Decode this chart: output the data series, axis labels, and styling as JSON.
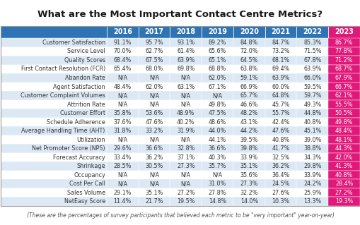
{
  "title": "What are the Most Important Contact Centre Metrics?",
  "subtitle": "(These are the percentages of survey participants that believed each metric to be \"very important\" year-on-year)",
  "columns": [
    "2016",
    "2017",
    "2018",
    "2019",
    "2020",
    "2021",
    "2022",
    "2023"
  ],
  "rows": [
    [
      "Customer Satisfaction",
      "91.1%",
      "95.7%",
      "93.1%",
      "89.2%",
      "84.8%",
      "84.7%",
      "85.3%",
      "86.7%"
    ],
    [
      "Service Level",
      "70.0%",
      "62.7%",
      "61.4%",
      "65.6%",
      "72.0%",
      "73.2%",
      "71.5%",
      "77.8%"
    ],
    [
      "Quality Scores",
      "68.4%",
      "67.5%",
      "63.9%",
      "65.1%",
      "64.5%",
      "68.1%",
      "67.8%",
      "71.2%"
    ],
    [
      "First Contact Resolution (FCR)",
      "65.4%",
      "68.0%",
      "69.8%",
      "68.8%",
      "63.8%",
      "69.4%",
      "63.9%",
      "68.7%"
    ],
    [
      "Abandon Rate",
      "N/A",
      "N/A",
      "N/A",
      "62.0%",
      "59.1%",
      "63.9%",
      "66.0%",
      "67.9%"
    ],
    [
      "Agent Satisfaction",
      "48.4%",
      "62.0%",
      "63.1%",
      "67.1%",
      "66.9%",
      "60.0%",
      "59.5%",
      "66.7%"
    ],
    [
      "Customer Complaint Volumes",
      "N/A",
      "N/A",
      "N/A",
      "N/A",
      "65.7%",
      "64.8%",
      "59.7%",
      "62.1%"
    ],
    [
      "Attrition Rate",
      "N/A",
      "N/A",
      "N/A",
      "49.8%",
      "46.6%",
      "45.7%",
      "49.3%",
      "55.5%"
    ],
    [
      "Customer Effort",
      "35.8%",
      "53.6%",
      "48.9%",
      "47.5%",
      "48.2%",
      "55.7%",
      "44.8%",
      "50.5%"
    ],
    [
      "Schedule Adherence",
      "37.6%",
      "47.6%",
      "40.2%",
      "48.6%",
      "43.1%",
      "42.4%",
      "40.8%",
      "49.8%"
    ],
    [
      "Average Handling Time (AHT)",
      "31.8%",
      "33.2%",
      "31.9%",
      "44.0%",
      "44.2%",
      "47.6%",
      "45.1%",
      "48.4%"
    ],
    [
      "Utilization",
      "N/A",
      "N/A",
      "N/A",
      "44.1%",
      "39.5%",
      "40.8%",
      "39.0%",
      "48.1%"
    ],
    [
      "Net Promoter Score (NPS)",
      "29.6%",
      "36.6%",
      "32.8%",
      "36.6%",
      "39.8%",
      "41.7%",
      "38.8%",
      "44.3%"
    ],
    [
      "Forecast Accuracy",
      "33.4%",
      "36.2%",
      "37.1%",
      "40.3%",
      "33.9%",
      "32.5%",
      "34.3%",
      "42.0%"
    ],
    [
      "Shrinkage",
      "28.5%",
      "30.5%",
      "27.3%",
      "35.7%",
      "35.1%",
      "36.2%",
      "29.8%",
      "41.3%"
    ],
    [
      "Occupancy",
      "N/A",
      "N/A",
      "N/A",
      "N/A",
      "35.6%",
      "36.4%",
      "33.9%",
      "40.8%"
    ],
    [
      "Cost Per Call",
      "N/A",
      "N/A",
      "N/A",
      "31.0%",
      "27.3%",
      "24.5%",
      "24.2%",
      "28.4%"
    ],
    [
      "Sales Volume",
      "29.1%",
      "35.1%",
      "27.2%",
      "27.8%",
      "32.2%",
      "27.6%",
      "25.9%",
      "27.2%"
    ],
    [
      "NetEasy Score",
      "11.4%",
      "21.7%",
      "19.5%",
      "14.8%",
      "14.0%",
      "10.3%",
      "13.3%",
      "19.3%"
    ]
  ],
  "header_color_blue": "#2E74B5",
  "header_color_pink": "#E0187A",
  "row_color_odd": "#FFFFFF",
  "row_color_even": "#DCE9F5",
  "text_color_header": "#FFFFFF",
  "text_color_body": "#333333",
  "title_fontsize": 9.5,
  "subtitle_fontsize": 5.5,
  "table_fontsize": 5.8,
  "header_fontsize": 7.0
}
